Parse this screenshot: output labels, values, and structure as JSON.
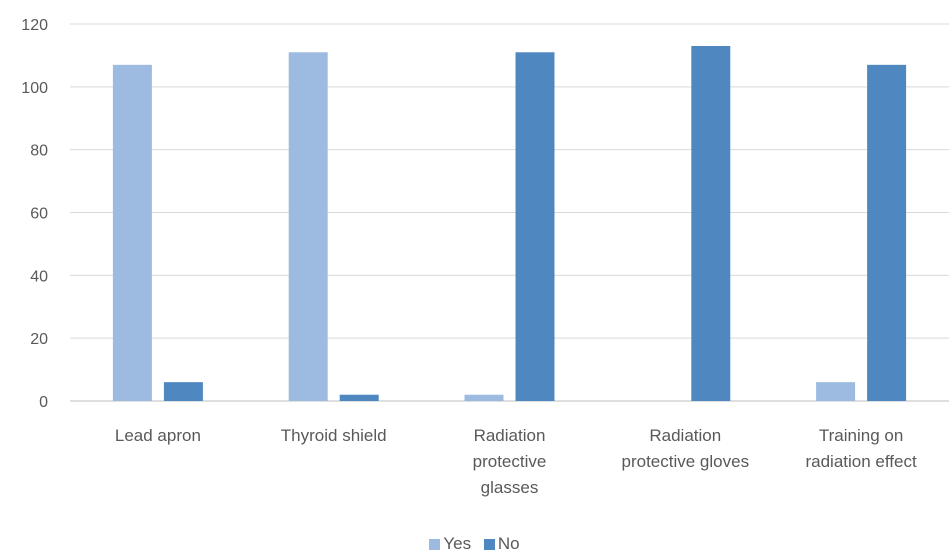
{
  "chart_data": {
    "type": "bar",
    "categories": [
      [
        "Lead apron"
      ],
      [
        "Thyroid shield"
      ],
      [
        "Radiation",
        "protective",
        "glasses"
      ],
      [
        "Radiation",
        "protective gloves"
      ],
      [
        "Training on",
        "radiation effect"
      ]
    ],
    "series": [
      {
        "name": "Yes",
        "color": "#9dbbe0",
        "values": [
          107,
          111,
          2,
          0,
          6
        ]
      },
      {
        "name": "No",
        "color": "#4f88c0",
        "values": [
          6,
          2,
          111,
          113,
          107
        ]
      }
    ],
    "ylim": [
      0,
      120
    ],
    "yticks": [
      0,
      20,
      40,
      60,
      80,
      100,
      120
    ],
    "grid": true,
    "legend": "bottom"
  }
}
